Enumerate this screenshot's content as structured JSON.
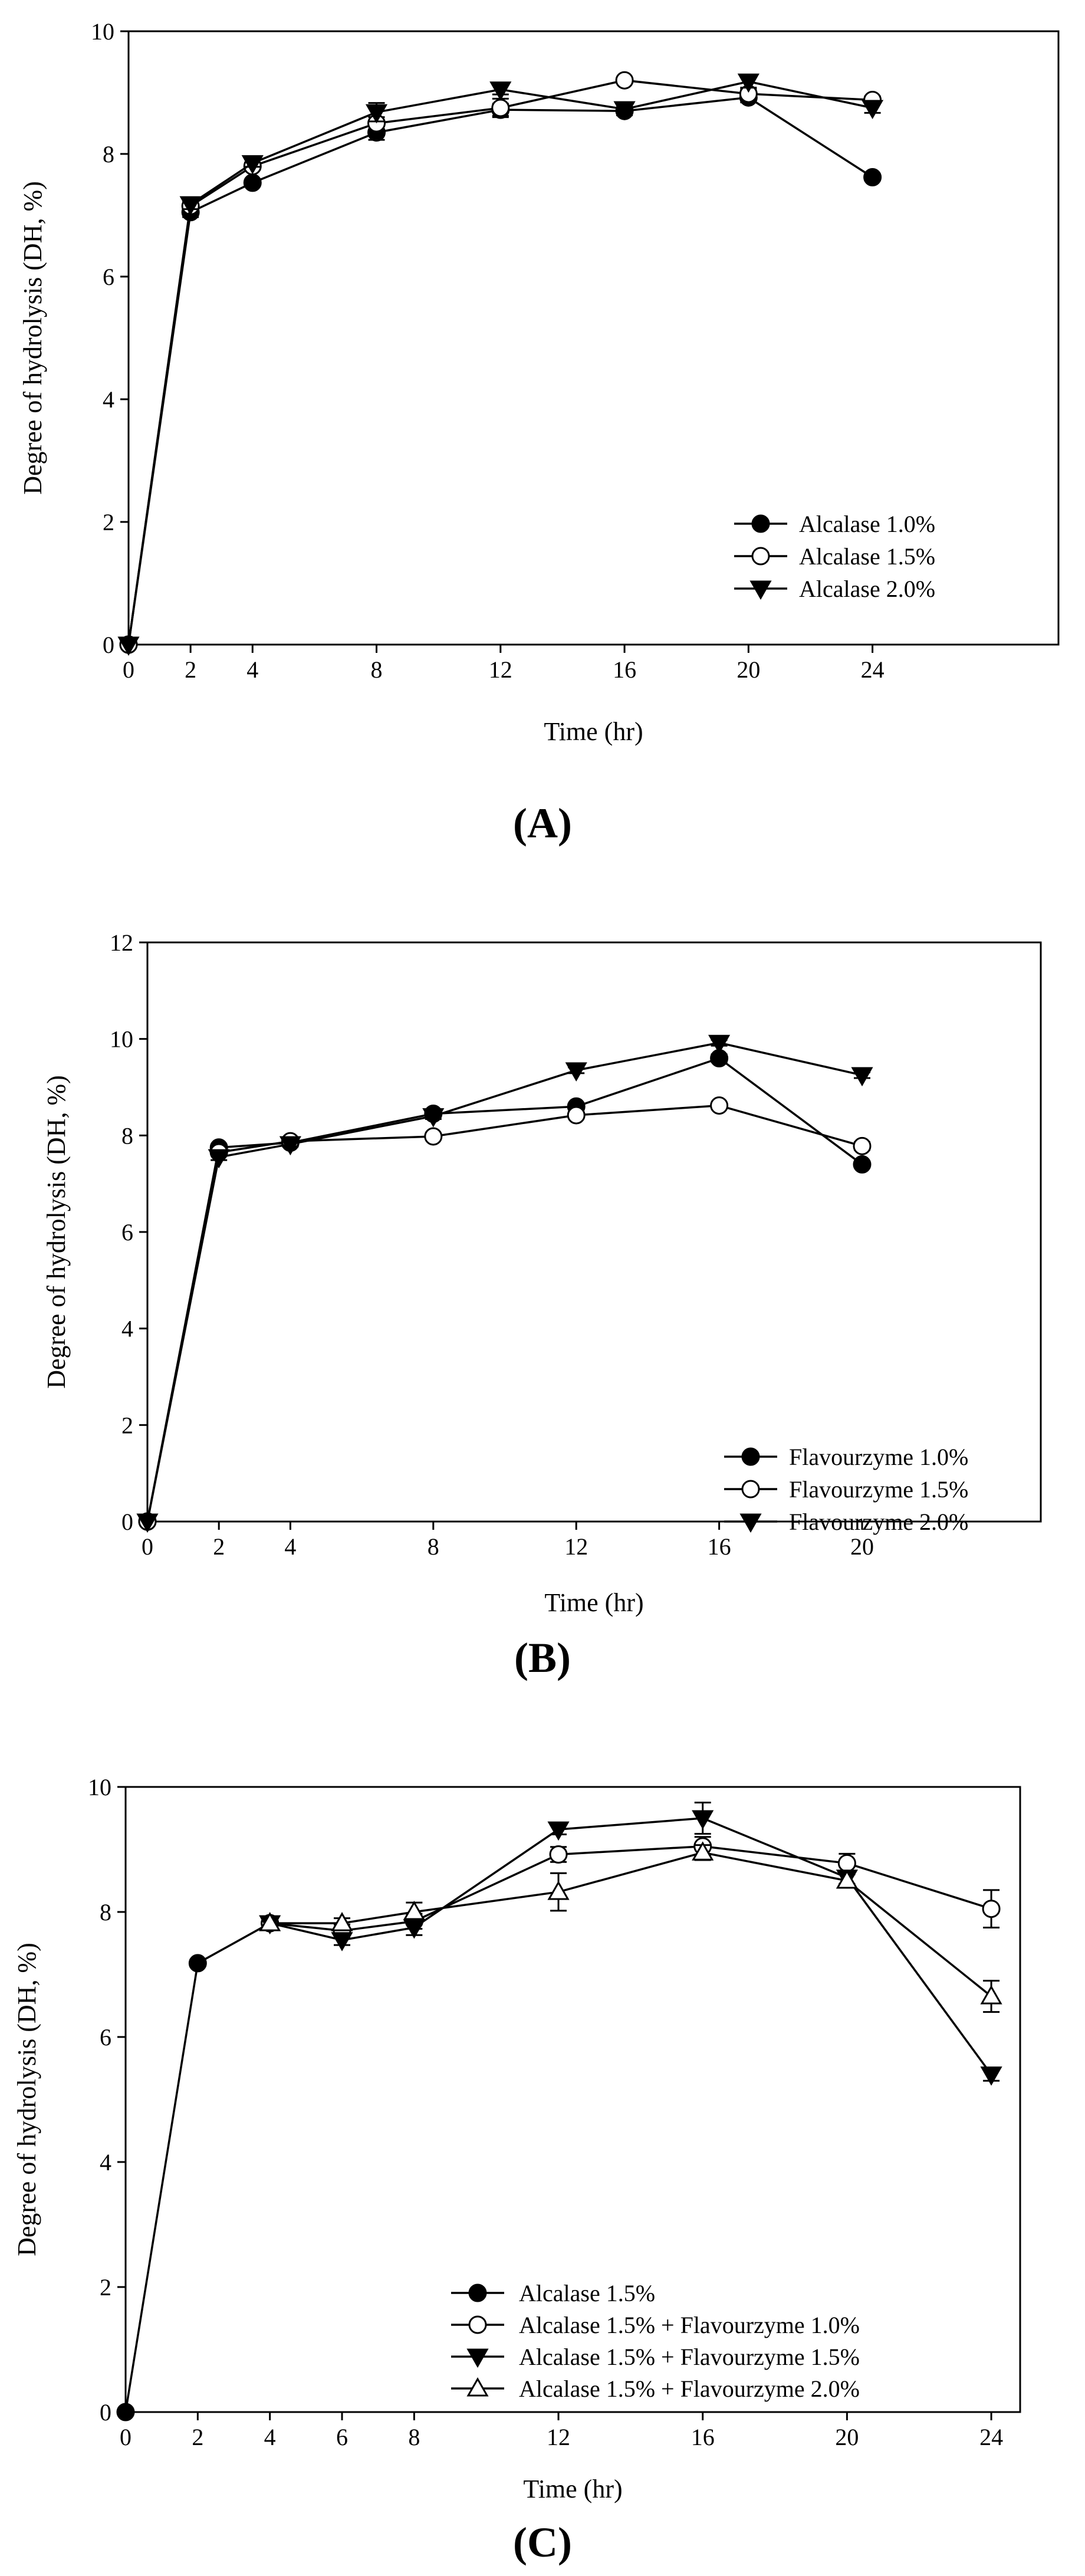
{
  "chart_data": [
    {
      "type": "line",
      "panel_label": "(A)",
      "title": "",
      "xlabel": "Time (hr)",
      "ylabel": "Degree of hydrolysis (DH, %)",
      "xlim": [
        0,
        30
      ],
      "ylim": [
        0,
        10
      ],
      "xticks": [
        0,
        2,
        4,
        8,
        12,
        16,
        20,
        24
      ],
      "yticks": [
        0,
        2,
        4,
        6,
        8,
        10
      ],
      "legend_position": "lower-right",
      "grid": false,
      "series": [
        {
          "name": "Alcalase 1.0%",
          "marker": "circle-filled",
          "x": [
            0,
            2,
            4,
            8,
            12,
            16,
            20,
            24
          ],
          "values": [
            0,
            7.05,
            7.53,
            8.35,
            8.72,
            8.7,
            8.92,
            7.62
          ],
          "errors": [
            0,
            0.08,
            0.05,
            0.12,
            0.1,
            0.07,
            0.08,
            0.05
          ]
        },
        {
          "name": "Alcalase 1.5%",
          "marker": "circle-open",
          "x": [
            0,
            2,
            4,
            8,
            12,
            16,
            20,
            24
          ],
          "values": [
            0,
            7.15,
            7.8,
            8.5,
            8.75,
            9.2,
            8.98,
            8.88
          ],
          "errors": [
            0,
            0.08,
            0.06,
            0.1,
            0.15,
            0.05,
            0.08,
            0.06
          ]
        },
        {
          "name": "Alcalase 2.0%",
          "marker": "triangle-down-filled",
          "x": [
            0,
            2,
            4,
            8,
            12,
            16,
            20,
            24
          ],
          "values": [
            0,
            7.18,
            7.85,
            8.68,
            9.05,
            8.73,
            9.18,
            8.75
          ],
          "errors": [
            0,
            0.08,
            0.06,
            0.15,
            0.08,
            0.07,
            0.1,
            0.08
          ]
        }
      ]
    },
    {
      "type": "line",
      "panel_label": "(B)",
      "title": "",
      "xlabel": "Time (hr)",
      "ylabel": "Degree of hydrolysis (DH, %)",
      "xlim": [
        0,
        25
      ],
      "ylim": [
        0,
        12
      ],
      "xticks": [
        0,
        2,
        4,
        8,
        12,
        16,
        20
      ],
      "yticks": [
        0,
        2,
        4,
        6,
        8,
        10,
        12
      ],
      "legend_position": "lower-right",
      "grid": false,
      "series": [
        {
          "name": "Flavourzyme 1.0%",
          "marker": "circle-filled",
          "x": [
            0,
            2,
            4,
            8,
            12,
            16,
            20
          ],
          "values": [
            0,
            7.75,
            7.85,
            8.45,
            8.6,
            9.6,
            7.4
          ],
          "errors": [
            0,
            0.06,
            0.05,
            0.06,
            0.06,
            0.08,
            0.06
          ]
        },
        {
          "name": "Flavourzyme 1.5%",
          "marker": "circle-open",
          "x": [
            0,
            2,
            4,
            8,
            12,
            16,
            20
          ],
          "values": [
            0,
            7.65,
            7.88,
            7.98,
            8.42,
            8.62,
            7.78
          ],
          "errors": [
            0,
            0.06,
            0.05,
            0.05,
            0.05,
            0.05,
            0.08
          ]
        },
        {
          "name": "Flavourzyme 2.0%",
          "marker": "triangle-down-filled",
          "x": [
            0,
            2,
            4,
            8,
            12,
            16,
            20
          ],
          "values": [
            0,
            7.55,
            7.82,
            8.4,
            9.35,
            9.92,
            9.25
          ],
          "errors": [
            0,
            0.06,
            0.05,
            0.06,
            0.06,
            0.06,
            0.06
          ]
        }
      ]
    },
    {
      "type": "line",
      "panel_label": "(C)",
      "title": "",
      "xlabel": "Time (hr)",
      "ylabel": "Degree of hydrolysis (DH, %)",
      "xlim": [
        0,
        24.8
      ],
      "ylim": [
        0,
        10
      ],
      "xticks": [
        0,
        2,
        4,
        6,
        8,
        12,
        16,
        20,
        24
      ],
      "yticks": [
        0,
        2,
        4,
        6,
        8,
        10
      ],
      "legend_position": "lower-center",
      "grid": false,
      "series": [
        {
          "name": "Alcalase 1.5%",
          "marker": "circle-filled",
          "x": [
            0,
            2,
            4
          ],
          "values": [
            0,
            7.18,
            7.82
          ],
          "errors": [
            0,
            0.05,
            0.05
          ]
        },
        {
          "name": "Alcalase 1.5% + Flavourzyme 1.0%",
          "marker": "circle-open",
          "x": [
            4,
            6,
            8,
            12,
            16,
            20,
            24
          ],
          "values": [
            7.82,
            7.7,
            7.85,
            8.92,
            9.05,
            8.78,
            8.05
          ],
          "errors": [
            0.05,
            0.1,
            0.12,
            0.12,
            0.15,
            0.15,
            0.3
          ]
        },
        {
          "name": "Alcalase 1.5% + Flavourzyme 1.5%",
          "marker": "triangle-down-filled",
          "x": [
            4,
            6,
            8,
            12,
            16,
            20,
            24
          ],
          "values": [
            7.82,
            7.55,
            7.75,
            9.32,
            9.5,
            8.55,
            5.4
          ],
          "errors": [
            0.05,
            0.08,
            0.12,
            0.08,
            0.25,
            0.1,
            0.1
          ]
        },
        {
          "name": "Alcalase 1.5% + Flavourzyme 2.0%",
          "marker": "triangle-up-open",
          "x": [
            4,
            6,
            8,
            12,
            16,
            20,
            24
          ],
          "values": [
            7.82,
            7.82,
            8.0,
            8.32,
            8.95,
            8.5,
            6.65
          ],
          "errors": [
            0.05,
            0.08,
            0.15,
            0.3,
            0.12,
            0.1,
            0.25
          ]
        }
      ]
    }
  ]
}
